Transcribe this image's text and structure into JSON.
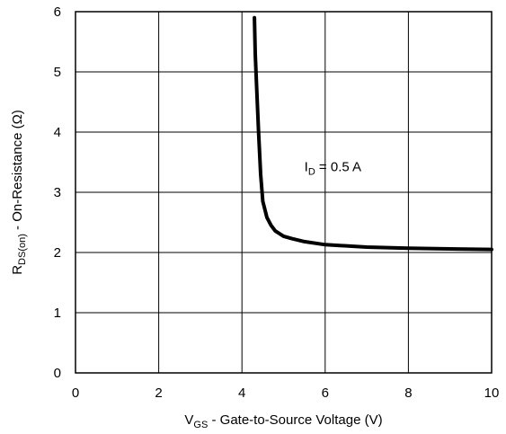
{
  "chart_data": {
    "type": "line",
    "xlabel": {
      "main": "V",
      "sub": "GS",
      "rest": " - Gate-to-Source Voltage (V)"
    },
    "ylabel": {
      "main": "R",
      "sub": "DS(on)",
      "rest": " - On-Resistance (Ω)"
    },
    "xlim": [
      0,
      10
    ],
    "ylim": [
      0,
      6
    ],
    "x_ticks": [
      "0",
      "2",
      "4",
      "6",
      "8",
      "10"
    ],
    "y_ticks": [
      "0",
      "1",
      "2",
      "3",
      "4",
      "5",
      "6"
    ],
    "grid": true,
    "annotation": {
      "main": "I",
      "sub": "D",
      "rest": " = 0.5 A",
      "x": 5.5,
      "y": 3.35
    },
    "series": [
      {
        "color": "#000000",
        "x": [
          4.3,
          4.32,
          4.35,
          4.4,
          4.45,
          4.5,
          4.6,
          4.7,
          4.8,
          5.0,
          5.2,
          5.5,
          6.0,
          7.0,
          8.0,
          9.0,
          10.0
        ],
        "y": [
          5.9,
          5.3,
          4.8,
          4.0,
          3.3,
          2.85,
          2.58,
          2.45,
          2.36,
          2.27,
          2.23,
          2.18,
          2.13,
          2.09,
          2.07,
          2.06,
          2.05
        ]
      }
    ]
  }
}
